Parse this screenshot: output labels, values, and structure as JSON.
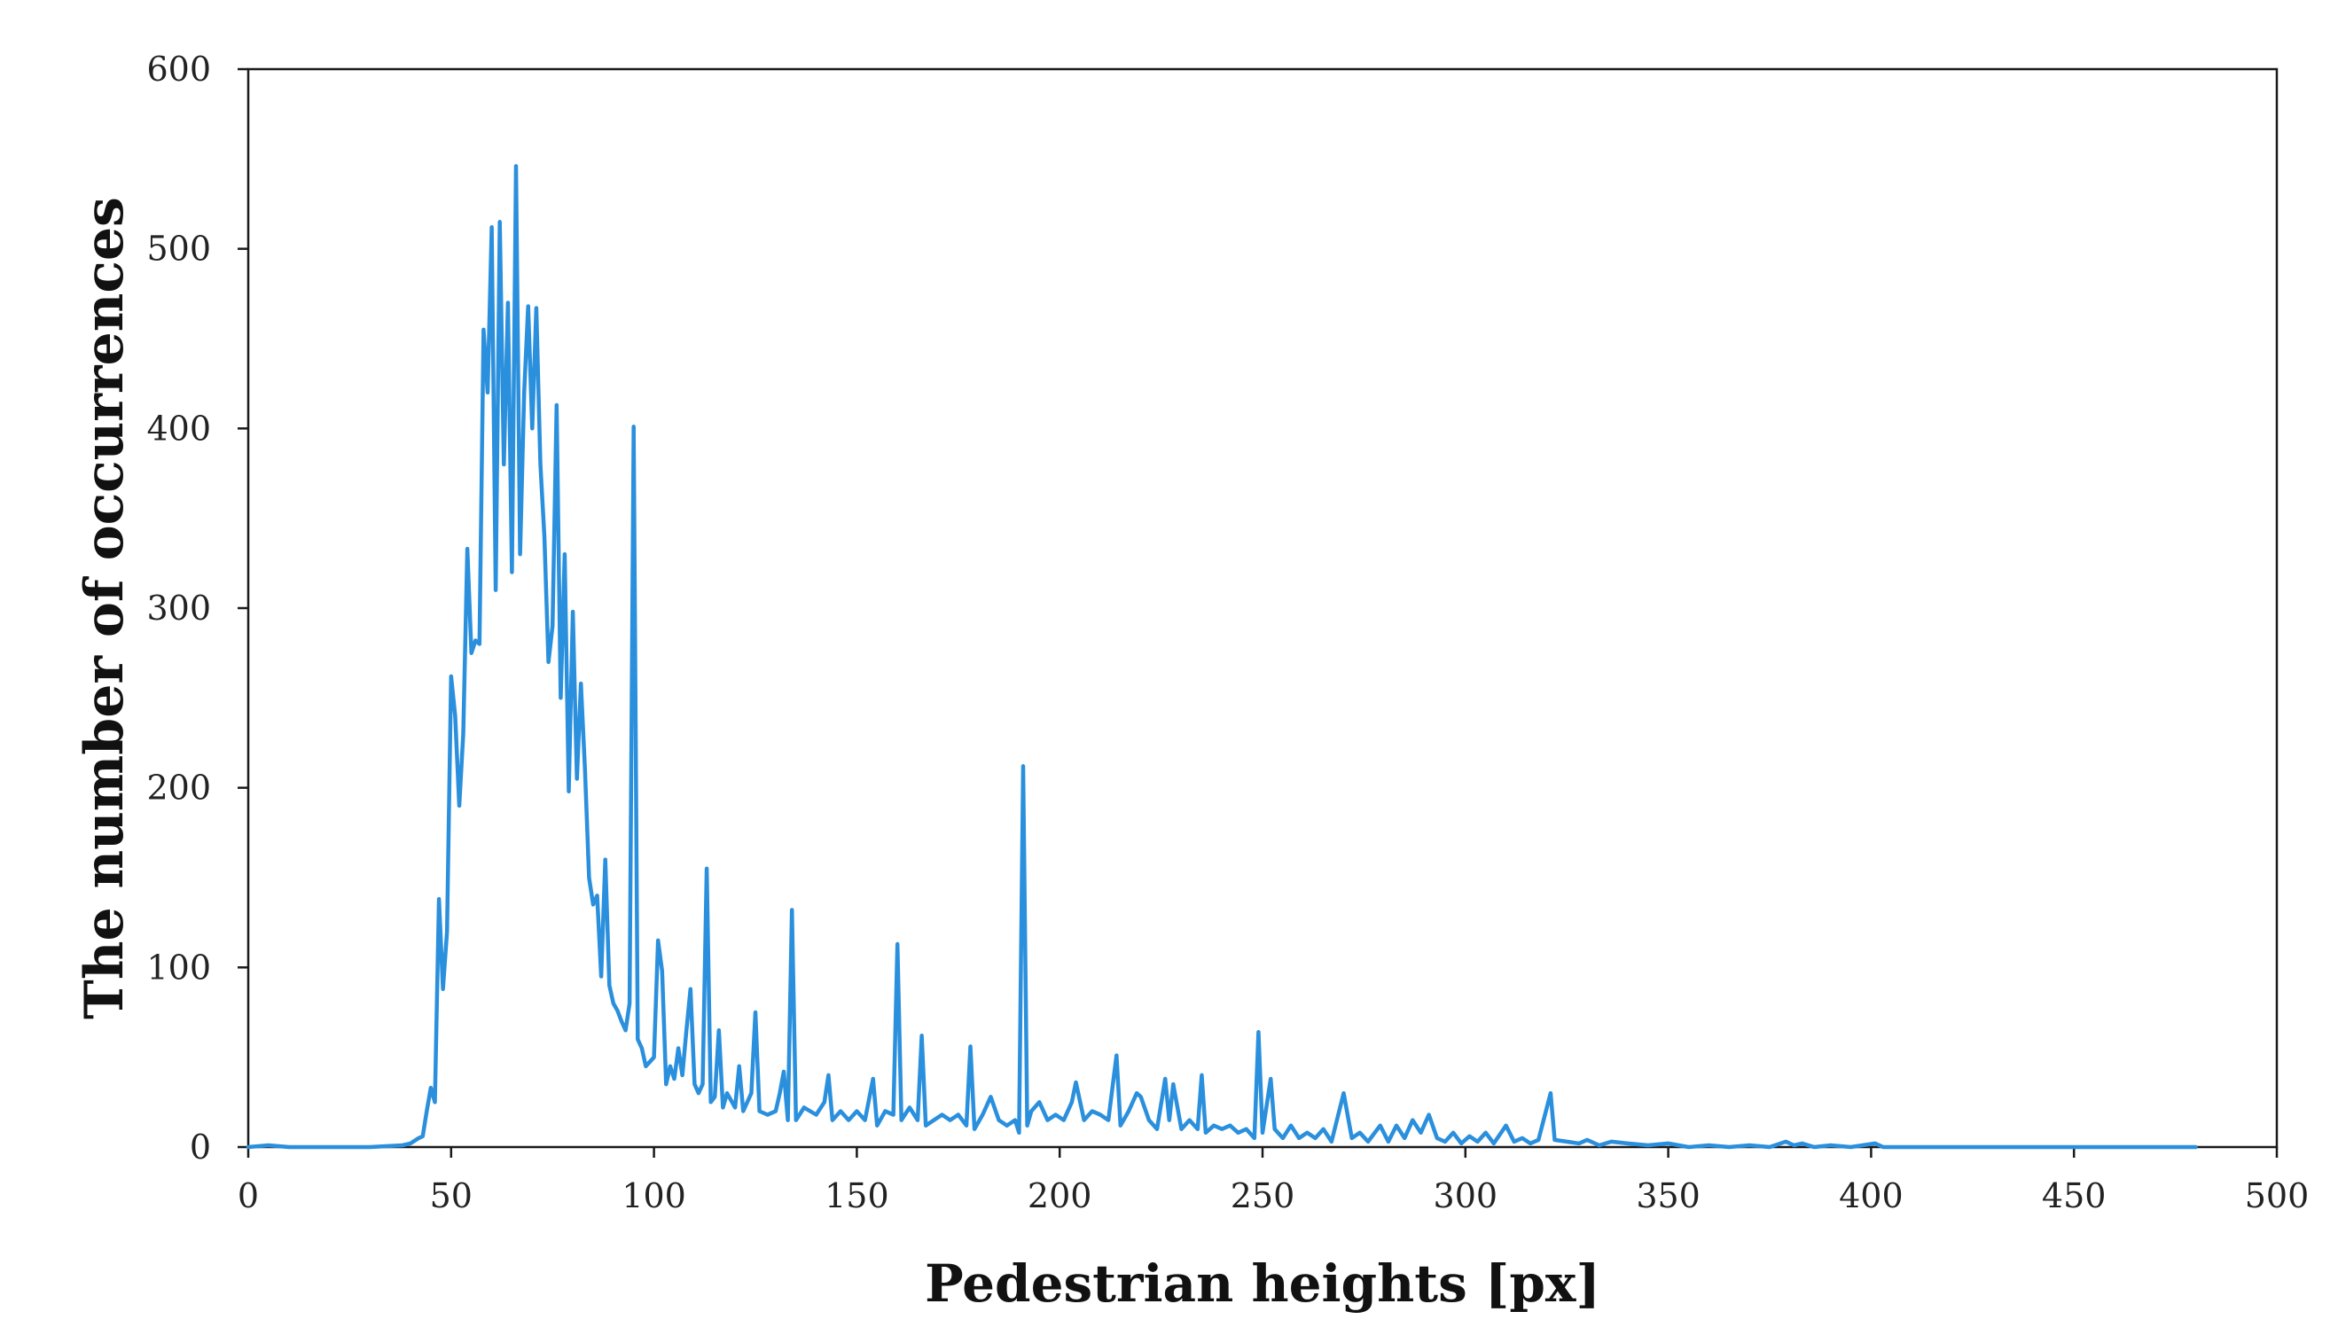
{
  "chart_data": {
    "type": "line",
    "title": "",
    "xlabel": "Pedestrian heights [px]",
    "ylabel": "The number of occurrences",
    "xlim": [
      0,
      500
    ],
    "ylim": [
      0,
      600
    ],
    "x_ticks": [
      0,
      50,
      100,
      150,
      200,
      250,
      300,
      350,
      400,
      450,
      500
    ],
    "y_ticks": [
      0,
      100,
      200,
      300,
      400,
      500,
      600
    ],
    "x_tick_labels": [
      "0",
      "50",
      "100",
      "150",
      "200",
      "250",
      "300",
      "350",
      "400",
      "450",
      "500"
    ],
    "y_tick_labels": [
      "0",
      "100",
      "200",
      "300",
      "400",
      "500",
      "600"
    ],
    "grid": false,
    "line_color": "#2a8fdc",
    "series": [
      {
        "name": "occurrences",
        "points": [
          [
            0,
            0
          ],
          [
            5,
            1
          ],
          [
            10,
            0
          ],
          [
            20,
            0
          ],
          [
            30,
            0
          ],
          [
            38,
            1
          ],
          [
            40,
            2
          ],
          [
            42,
            5
          ],
          [
            43,
            6
          ],
          [
            44,
            20
          ],
          [
            45,
            33
          ],
          [
            46,
            25
          ],
          [
            47,
            138
          ],
          [
            48,
            88
          ],
          [
            49,
            120
          ],
          [
            50,
            262
          ],
          [
            51,
            240
          ],
          [
            52,
            190
          ],
          [
            53,
            230
          ],
          [
            54,
            333
          ],
          [
            55,
            275
          ],
          [
            56,
            282
          ],
          [
            57,
            280
          ],
          [
            58,
            455
          ],
          [
            59,
            420
          ],
          [
            60,
            512
          ],
          [
            61,
            310
          ],
          [
            62,
            515
          ],
          [
            63,
            380
          ],
          [
            64,
            470
          ],
          [
            65,
            320
          ],
          [
            66,
            546
          ],
          [
            67,
            330
          ],
          [
            68,
            420
          ],
          [
            69,
            468
          ],
          [
            70,
            400
          ],
          [
            71,
            467
          ],
          [
            72,
            380
          ],
          [
            73,
            340
          ],
          [
            74,
            270
          ],
          [
            75,
            290
          ],
          [
            76,
            413
          ],
          [
            77,
            250
          ],
          [
            78,
            330
          ],
          [
            79,
            198
          ],
          [
            80,
            298
          ],
          [
            81,
            205
          ],
          [
            82,
            258
          ],
          [
            83,
            210
          ],
          [
            84,
            150
          ],
          [
            85,
            135
          ],
          [
            86,
            140
          ],
          [
            87,
            95
          ],
          [
            88,
            160
          ],
          [
            89,
            90
          ],
          [
            90,
            80
          ],
          [
            91,
            76
          ],
          [
            92,
            70
          ],
          [
            93,
            65
          ],
          [
            94,
            80
          ],
          [
            95,
            401
          ],
          [
            96,
            60
          ],
          [
            97,
            55
          ],
          [
            98,
            45
          ],
          [
            100,
            50
          ],
          [
            101,
            115
          ],
          [
            102,
            98
          ],
          [
            103,
            35
          ],
          [
            104,
            45
          ],
          [
            105,
            38
          ],
          [
            106,
            55
          ],
          [
            107,
            40
          ],
          [
            108,
            65
          ],
          [
            109,
            88
          ],
          [
            110,
            35
          ],
          [
            111,
            30
          ],
          [
            112,
            35
          ],
          [
            113,
            155
          ],
          [
            114,
            25
          ],
          [
            115,
            28
          ],
          [
            116,
            65
          ],
          [
            117,
            22
          ],
          [
            118,
            30
          ],
          [
            120,
            22
          ],
          [
            121,
            45
          ],
          [
            122,
            20
          ],
          [
            124,
            30
          ],
          [
            125,
            75
          ],
          [
            126,
            20
          ],
          [
            128,
            18
          ],
          [
            130,
            20
          ],
          [
            131,
            30
          ],
          [
            132,
            42
          ],
          [
            133,
            15
          ],
          [
            134,
            132
          ],
          [
            135,
            15
          ],
          [
            137,
            22
          ],
          [
            140,
            18
          ],
          [
            142,
            25
          ],
          [
            143,
            40
          ],
          [
            144,
            15
          ],
          [
            146,
            20
          ],
          [
            148,
            15
          ],
          [
            150,
            20
          ],
          [
            152,
            15
          ],
          [
            154,
            38
          ],
          [
            155,
            12
          ],
          [
            157,
            20
          ],
          [
            159,
            18
          ],
          [
            160,
            113
          ],
          [
            161,
            15
          ],
          [
            163,
            22
          ],
          [
            165,
            15
          ],
          [
            166,
            62
          ],
          [
            167,
            12
          ],
          [
            169,
            15
          ],
          [
            171,
            18
          ],
          [
            173,
            15
          ],
          [
            175,
            18
          ],
          [
            177,
            12
          ],
          [
            178,
            56
          ],
          [
            179,
            10
          ],
          [
            181,
            18
          ],
          [
            183,
            28
          ],
          [
            185,
            15
          ],
          [
            187,
            12
          ],
          [
            189,
            15
          ],
          [
            190,
            8
          ],
          [
            191,
            212
          ],
          [
            192,
            12
          ],
          [
            193,
            20
          ],
          [
            195,
            25
          ],
          [
            197,
            15
          ],
          [
            199,
            18
          ],
          [
            201,
            15
          ],
          [
            203,
            25
          ],
          [
            204,
            36
          ],
          [
            206,
            15
          ],
          [
            208,
            20
          ],
          [
            210,
            18
          ],
          [
            212,
            15
          ],
          [
            214,
            51
          ],
          [
            215,
            12
          ],
          [
            217,
            20
          ],
          [
            219,
            30
          ],
          [
            220,
            28
          ],
          [
            222,
            15
          ],
          [
            224,
            10
          ],
          [
            226,
            38
          ],
          [
            227,
            15
          ],
          [
            228,
            35
          ],
          [
            230,
            10
          ],
          [
            232,
            15
          ],
          [
            234,
            10
          ],
          [
            235,
            40
          ],
          [
            236,
            8
          ],
          [
            238,
            12
          ],
          [
            240,
            10
          ],
          [
            242,
            12
          ],
          [
            244,
            8
          ],
          [
            246,
            10
          ],
          [
            248,
            5
          ],
          [
            249,
            64
          ],
          [
            250,
            8
          ],
          [
            252,
            38
          ],
          [
            253,
            10
          ],
          [
            255,
            5
          ],
          [
            257,
            12
          ],
          [
            259,
            5
          ],
          [
            261,
            8
          ],
          [
            263,
            5
          ],
          [
            265,
            10
          ],
          [
            267,
            3
          ],
          [
            270,
            30
          ],
          [
            272,
            5
          ],
          [
            274,
            8
          ],
          [
            276,
            3
          ],
          [
            279,
            12
          ],
          [
            281,
            3
          ],
          [
            283,
            12
          ],
          [
            285,
            5
          ],
          [
            287,
            15
          ],
          [
            289,
            8
          ],
          [
            291,
            18
          ],
          [
            293,
            5
          ],
          [
            295,
            3
          ],
          [
            297,
            8
          ],
          [
            299,
            2
          ],
          [
            301,
            6
          ],
          [
            303,
            3
          ],
          [
            305,
            8
          ],
          [
            307,
            2
          ],
          [
            310,
            12
          ],
          [
            312,
            3
          ],
          [
            314,
            5
          ],
          [
            316,
            2
          ],
          [
            318,
            4
          ],
          [
            321,
            30
          ],
          [
            322,
            4
          ],
          [
            325,
            3
          ],
          [
            328,
            2
          ],
          [
            330,
            4
          ],
          [
            333,
            1
          ],
          [
            336,
            3
          ],
          [
            340,
            2
          ],
          [
            345,
            1
          ],
          [
            350,
            2
          ],
          [
            355,
            0
          ],
          [
            360,
            1
          ],
          [
            365,
            0
          ],
          [
            370,
            1
          ],
          [
            375,
            0
          ],
          [
            379,
            3
          ],
          [
            381,
            1
          ],
          [
            383,
            2
          ],
          [
            386,
            0
          ],
          [
            390,
            1
          ],
          [
            395,
            0
          ],
          [
            401,
            2
          ],
          [
            403,
            0
          ],
          [
            410,
            0
          ],
          [
            420,
            0
          ],
          [
            440,
            0
          ],
          [
            460,
            0
          ],
          [
            480,
            0
          ]
        ]
      }
    ]
  }
}
